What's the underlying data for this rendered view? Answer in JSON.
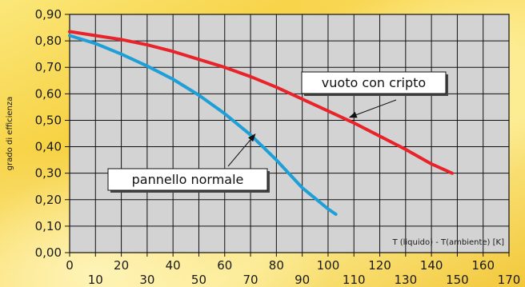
{
  "chart_data": {
    "type": "line",
    "title": "",
    "xlabel": "T (liquido) - T(ambiente) [K]",
    "ylabel": "grado di efficienza",
    "xlim": [
      0,
      170
    ],
    "ylim": [
      0,
      0.9
    ],
    "x_ticks_top_row": [
      "0",
      "20",
      "40",
      "60",
      "80",
      "100",
      "120",
      "140",
      "160"
    ],
    "x_ticks_bottom_row": [
      "10",
      "30",
      "50",
      "70",
      "90",
      "110",
      "130",
      "150",
      "170"
    ],
    "y_ticks": [
      "0,00",
      "0,10",
      "0,20",
      "0,30",
      "0,40",
      "0,50",
      "0,60",
      "0,70",
      "0,80",
      "0,90"
    ],
    "grid": true,
    "series": [
      {
        "name": "vuoto con cripto",
        "color": "#e8232a",
        "x": [
          0,
          10,
          20,
          30,
          40,
          50,
          60,
          70,
          80,
          90,
          100,
          110,
          120,
          130,
          140,
          148
        ],
        "y": [
          0.835,
          0.82,
          0.805,
          0.785,
          0.76,
          0.73,
          0.7,
          0.665,
          0.625,
          0.58,
          0.535,
          0.49,
          0.44,
          0.39,
          0.335,
          0.3
        ]
      },
      {
        "name": "pannello normale",
        "color": "#1e9fd8",
        "x": [
          0,
          10,
          20,
          30,
          40,
          50,
          60,
          70,
          80,
          90,
          100,
          103
        ],
        "y": [
          0.82,
          0.79,
          0.75,
          0.705,
          0.655,
          0.595,
          0.525,
          0.445,
          0.35,
          0.245,
          0.165,
          0.145
        ]
      }
    ],
    "annotations": [
      {
        "text": "vuoto con cripto",
        "series": "vuoto con cripto",
        "arrow_to": [
          108,
          0.51
        ]
      },
      {
        "text": "pannello normale",
        "series": "pannello normale",
        "arrow_to": [
          72,
          0.45
        ]
      }
    ]
  },
  "colors": {
    "background": "#f7d54a",
    "plot_fill": "#d3d3d3",
    "grid": "#111111"
  }
}
